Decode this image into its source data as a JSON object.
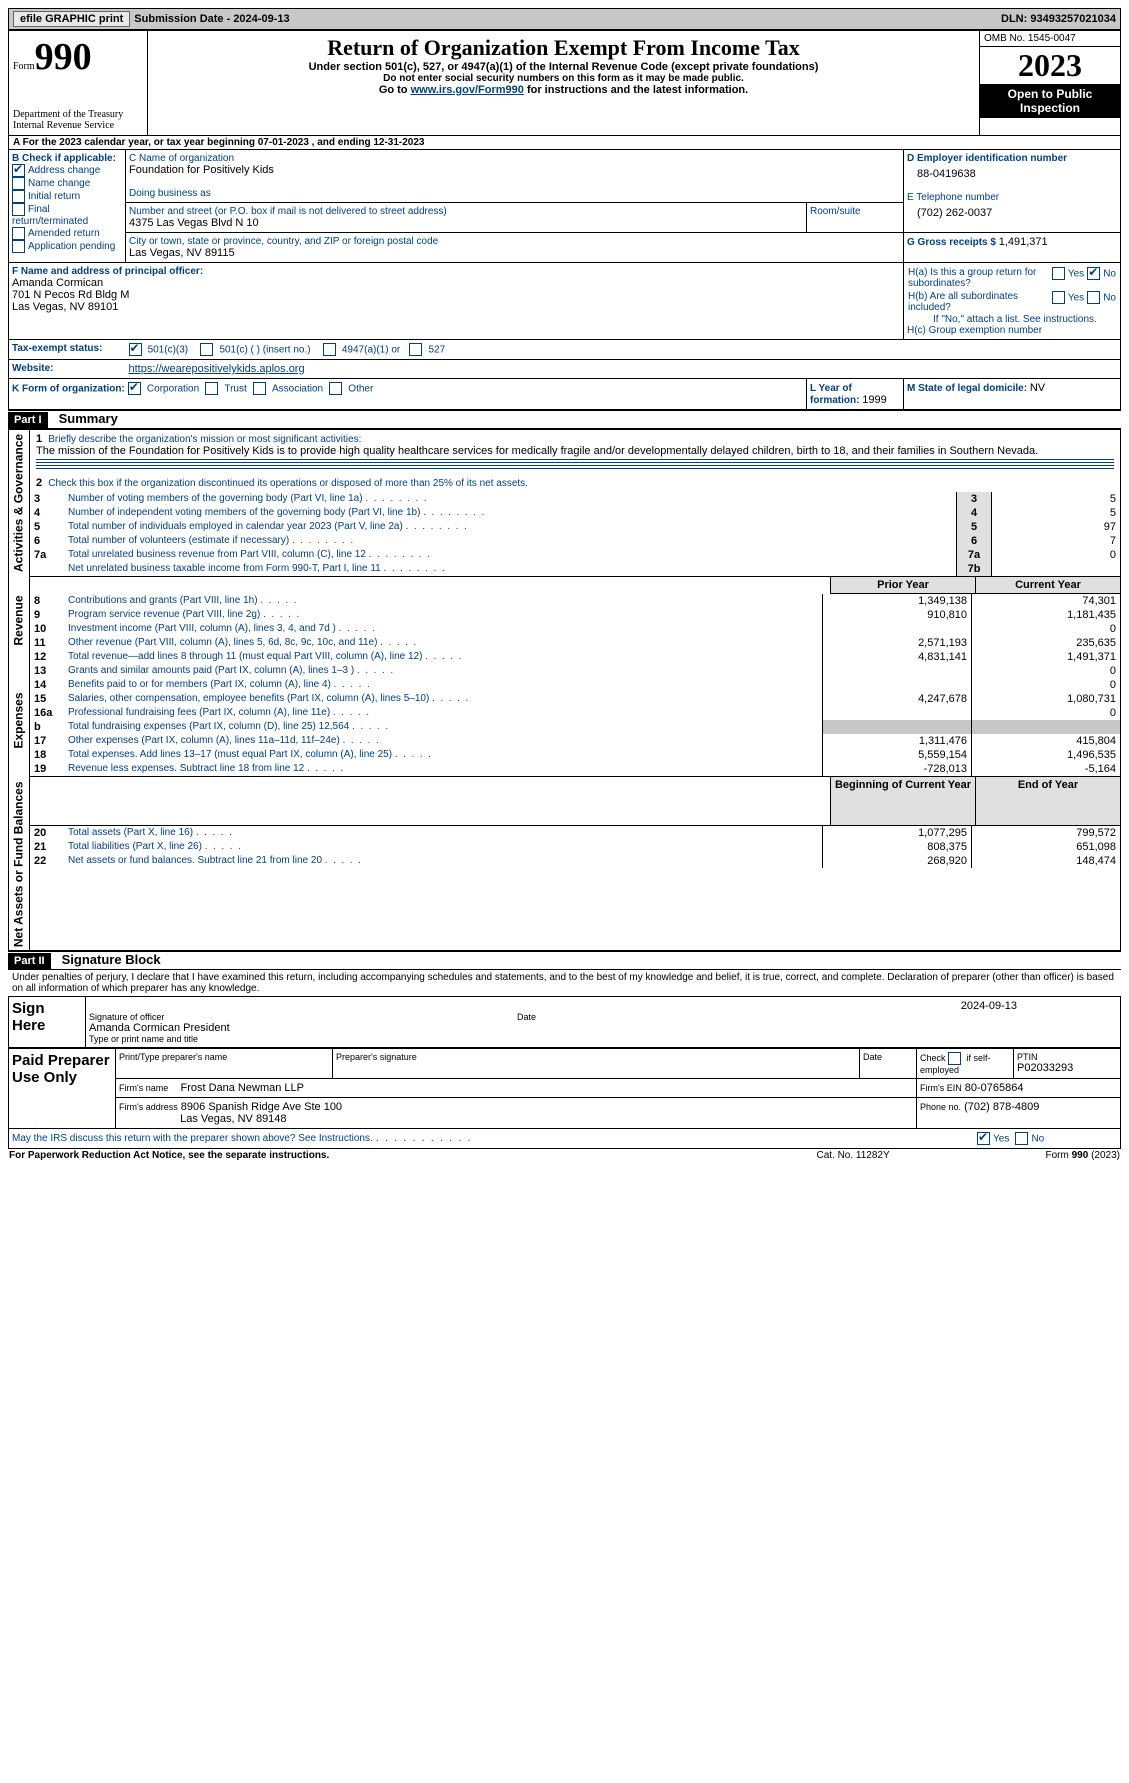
{
  "topbar": {
    "efile": "efile GRAPHIC print",
    "submission": "Submission Date - 2024-09-13",
    "dln": "DLN: 93493257021034"
  },
  "header": {
    "form_label": "Form",
    "form_no": "990",
    "title": "Return of Organization Exempt From Income Tax",
    "sub1": "Under section 501(c), 527, or 4947(a)(1) of the Internal Revenue Code (except private foundations)",
    "sub2": "Do not enter social security numbers on this form as it may be made public.",
    "sub3a": "Go to ",
    "sub3b": "www.irs.gov/Form990",
    "sub3c": " for instructions and the latest information.",
    "dept": "Department of the Treasury",
    "irs": "Internal Revenue Service",
    "omb": "OMB No. 1545-0047",
    "year": "2023",
    "inspect": "Open to Public Inspection",
    "cal_a": "A For the 2023 calendar year, or tax year beginning ",
    "cal_b": "07-01-2023",
    "cal_c": " , and ending ",
    "cal_d": "12-31-2023"
  },
  "boxB": {
    "label": "B Check if applicable:",
    "items": [
      {
        "t": "Address change",
        "on": true
      },
      {
        "t": "Name change",
        "on": false
      },
      {
        "t": "Initial return",
        "on": false
      },
      {
        "t": "Final return/terminated",
        "on": false
      },
      {
        "t": "Amended return",
        "on": false
      },
      {
        "t": "Application pending",
        "on": false
      }
    ]
  },
  "boxC": {
    "name_lbl": "C Name of organization",
    "name": "Foundation for Positively Kids",
    "dba_lbl": "Doing business as",
    "addr_lbl": "Number and street (or P.O. box if mail is not delivered to street address)",
    "room_lbl": "Room/suite",
    "addr": "4375 Las Vegas Blvd N 10",
    "city_lbl": "City or town, state or province, country, and ZIP or foreign postal code",
    "city": "Las Vegas, NV  89115"
  },
  "boxD": {
    "lbl": "D Employer identification number",
    "val": "88-0419638"
  },
  "boxE": {
    "lbl": "E Telephone number",
    "val": "(702) 262-0037"
  },
  "boxG": {
    "lbl": "G Gross receipts $ ",
    "val": "1,491,371"
  },
  "boxF": {
    "lbl": "F Name and address of principal officer:",
    "l1": "Amanda Cormican",
    "l2": "701 N Pecos Rd Bldg M",
    "l3": "Las Vegas, NV  89101"
  },
  "boxH": {
    "a": "H(a)  Is this a group return for subordinates?",
    "b": "H(b)  Are all subordinates included?",
    "bnote": "If \"No,\" attach a list. See instructions.",
    "c": "H(c)  Group exemption number",
    "yes": "Yes",
    "no": "No"
  },
  "boxI": {
    "lbl": "Tax-exempt status:",
    "c3": "501(c)(3)",
    "c": "501(c) (  ) (insert no.)",
    "a1": "4947(a)(1) or",
    "s527": "527"
  },
  "boxJ": {
    "lbl": "Website:",
    "val": "https://wearepositivelykids.aplos.org"
  },
  "boxK": {
    "lbl": "K Form of organization:",
    "corp": "Corporation",
    "trust": "Trust",
    "assoc": "Association",
    "other": "Other"
  },
  "boxL": {
    "lbl": "L Year of formation: ",
    "val": "1999"
  },
  "boxM": {
    "lbl": "M State of legal domicile: ",
    "val": "NV"
  },
  "part1": {
    "label": "Part I",
    "title": "Summary"
  },
  "sideA": "Activities & Governance",
  "sideR": "Revenue",
  "sideE": "Expenses",
  "sideN": "Net Assets or Fund Balances",
  "mission_lbl": "Briefly describe the organization's mission or most significant activities:",
  "mission": "The mission of the Foundation for Positively Kids is to provide high quality healthcare services for medically fragile and/or developmentally delayed children, birth to 18, and their families in Southern Nevada.",
  "l2": "Check this box     if the organization discontinued its operations or disposed of more than 25% of its net assets.",
  "lines_gov": [
    {
      "n": "3",
      "t": "Number of voting members of the governing body (Part VI, line 1a)",
      "k": "3",
      "v": "5"
    },
    {
      "n": "4",
      "t": "Number of independent voting members of the governing body (Part VI, line 1b)",
      "k": "4",
      "v": "5"
    },
    {
      "n": "5",
      "t": "Total number of individuals employed in calendar year 2023 (Part V, line 2a)",
      "k": "5",
      "v": "97"
    },
    {
      "n": "6",
      "t": "Total number of volunteers (estimate if necessary)",
      "k": "6",
      "v": "7"
    },
    {
      "n": "7a",
      "t": "Total unrelated business revenue from Part VIII, column (C), line 12",
      "k": "7a",
      "v": "0"
    },
    {
      "n": "",
      "t": "Net unrelated business taxable income from Form 990-T, Part I, line 11",
      "k": "7b",
      "v": ""
    }
  ],
  "col_prior": "Prior Year",
  "col_curr": "Current Year",
  "lines_rev": [
    {
      "n": "8",
      "t": "Contributions and grants (Part VIII, line 1h)",
      "p": "1,349,138",
      "c": "74,301"
    },
    {
      "n": "9",
      "t": "Program service revenue (Part VIII, line 2g)",
      "p": "910,810",
      "c": "1,181,435"
    },
    {
      "n": "10",
      "t": "Investment income (Part VIII, column (A), lines 3, 4, and 7d )",
      "p": "",
      "c": "0"
    },
    {
      "n": "11",
      "t": "Other revenue (Part VIII, column (A), lines 5, 6d, 8c, 9c, 10c, and 11e)",
      "p": "2,571,193",
      "c": "235,635"
    },
    {
      "n": "12",
      "t": "Total revenue—add lines 8 through 11 (must equal Part VIII, column (A), line 12)",
      "p": "4,831,141",
      "c": "1,491,371"
    }
  ],
  "lines_exp": [
    {
      "n": "13",
      "t": "Grants and similar amounts paid (Part IX, column (A), lines 1–3 )",
      "p": "",
      "c": "0"
    },
    {
      "n": "14",
      "t": "Benefits paid to or for members (Part IX, column (A), line 4)",
      "p": "",
      "c": "0"
    },
    {
      "n": "15",
      "t": "Salaries, other compensation, employee benefits (Part IX, column (A), lines 5–10)",
      "p": "4,247,678",
      "c": "1,080,731"
    },
    {
      "n": "16a",
      "t": "Professional fundraising fees (Part IX, column (A), line 11e)",
      "p": "",
      "c": "0"
    },
    {
      "n": "b",
      "t": "Total fundraising expenses (Part IX, column (D), line 25) 12,564",
      "p": "__gray__",
      "c": "__gray__"
    },
    {
      "n": "17",
      "t": "Other expenses (Part IX, column (A), lines 11a–11d, 11f–24e)",
      "p": "1,311,476",
      "c": "415,804"
    },
    {
      "n": "18",
      "t": "Total expenses. Add lines 13–17 (must equal Part IX, column (A), line 25)",
      "p": "5,559,154",
      "c": "1,496,535"
    },
    {
      "n": "19",
      "t": "Revenue less expenses. Subtract line 18 from line 12",
      "p": "-728,013",
      "c": "-5,164"
    }
  ],
  "col_beg": "Beginning of Current Year",
  "col_end": "End of Year",
  "lines_net": [
    {
      "n": "20",
      "t": "Total assets (Part X, line 16)",
      "p": "1,077,295",
      "c": "799,572"
    },
    {
      "n": "21",
      "t": "Total liabilities (Part X, line 26)",
      "p": "808,375",
      "c": "651,098"
    },
    {
      "n": "22",
      "t": "Net assets or fund balances. Subtract line 21 from line 20",
      "p": "268,920",
      "c": "148,474"
    }
  ],
  "part2": {
    "label": "Part II",
    "title": "Signature Block"
  },
  "perjury": "Under penalties of perjury, I declare that I have examined this return, including accompanying schedules and statements, and to the best of my knowledge and belief, it is true, correct, and complete. Declaration of preparer (other than officer) is based on all information of which preparer has any knowledge.",
  "sign": {
    "here": "Sign Here",
    "sig_lbl": "Signature of officer",
    "sig": "Amanda Cormican  President",
    "type_lbl": "Type or print name and title",
    "date_lbl": "Date",
    "date": "2024-09-13"
  },
  "paid": {
    "title": "Paid Preparer Use Only",
    "name_lbl": "Print/Type preparer's name",
    "sig_lbl": "Preparer's signature",
    "date_lbl": "Date",
    "check_lbl": "Check        if self-employed",
    "ptin_lbl": "PTIN",
    "ptin": "P02033293",
    "firm_lbl": "Firm's name",
    "firm": "Frost Dana Newman LLP",
    "ein_lbl": "Firm's EIN",
    "ein": "80-0765864",
    "addr_lbl": "Firm's address",
    "addr1": "8906 Spanish Ridge Ave Ste 100",
    "addr2": "Las Vegas, NV  89148",
    "phone_lbl": "Phone no.",
    "phone": "(702) 878-4809"
  },
  "footer": {
    "discuss": "May the IRS discuss this return with the preparer shown above? See Instructions.",
    "yes": "Yes",
    "no": "No",
    "paperwork": "For Paperwork Reduction Act Notice, see the separate instructions.",
    "cat": "Cat. No. 11282Y",
    "form": "Form 990 (2023)"
  }
}
